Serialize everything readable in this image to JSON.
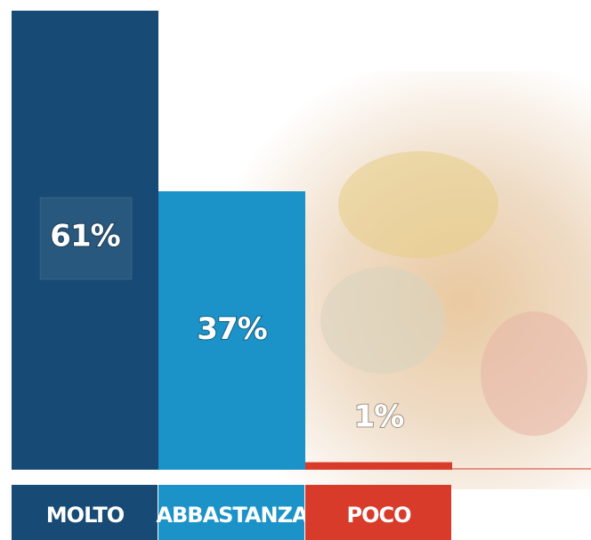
{
  "chart_data": {
    "type": "bar",
    "categories": [
      "MOLTO",
      "ABBASTANZA",
      "POCO"
    ],
    "values": [
      61,
      37,
      1
    ],
    "value_labels": [
      "61%",
      "37%",
      "1%"
    ],
    "colors": [
      "#174a74",
      "#1b93c8",
      "#d93b2b"
    ]
  }
}
